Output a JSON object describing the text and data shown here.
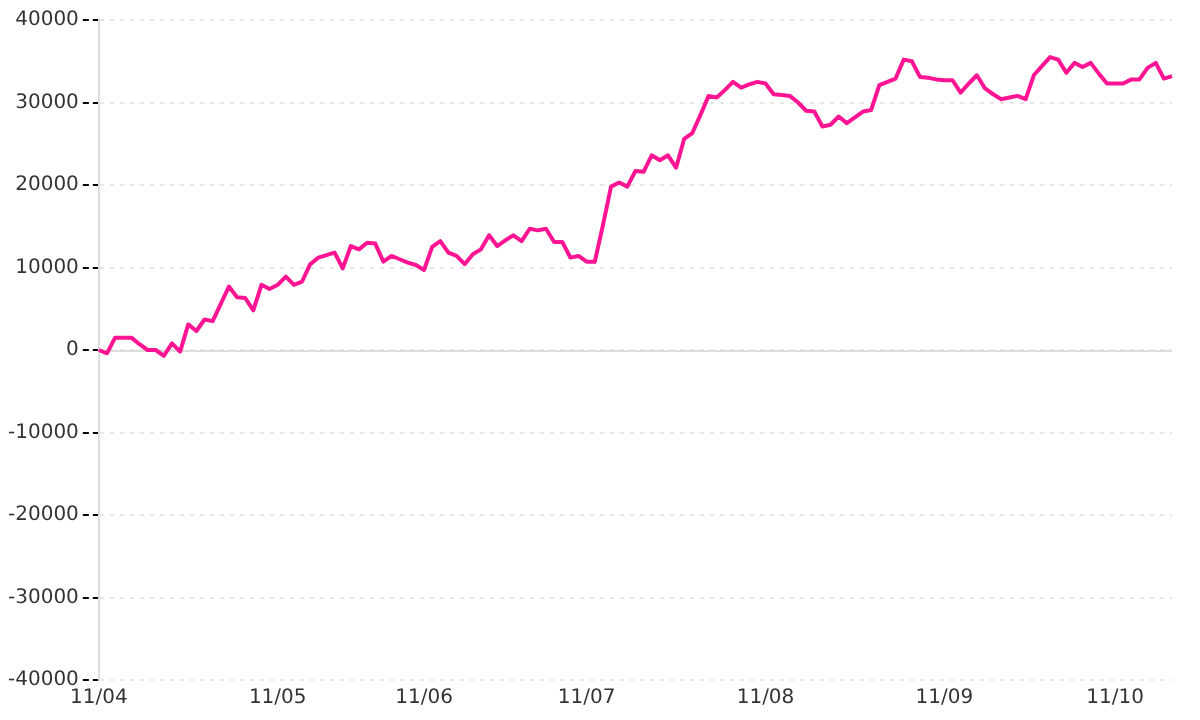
{
  "chart_data": {
    "type": "line",
    "ylim": [
      -40000,
      40000
    ],
    "categories": [
      "11/04",
      null,
      null,
      null,
      null,
      null,
      null,
      null,
      null,
      null,
      null,
      null,
      null,
      null,
      null,
      null,
      null,
      null,
      null,
      null,
      null,
      null,
      "11/05",
      null,
      null,
      null,
      null,
      null,
      null,
      null,
      null,
      null,
      null,
      null,
      null,
      null,
      null,
      null,
      null,
      null,
      "11/06",
      null,
      null,
      null,
      null,
      null,
      null,
      null,
      null,
      null,
      null,
      null,
      null,
      null,
      null,
      null,
      null,
      null,
      null,
      null,
      "11/07",
      null,
      null,
      null,
      null,
      null,
      null,
      null,
      null,
      null,
      null,
      null,
      null,
      null,
      null,
      null,
      null,
      null,
      null,
      null,
      null,
      null,
      "11/08",
      null,
      null,
      null,
      null,
      null,
      null,
      null,
      null,
      null,
      null,
      null,
      null,
      null,
      null,
      null,
      null,
      null,
      null,
      null,
      null,
      null,
      "11/09",
      null,
      null,
      null,
      null,
      null,
      null,
      null,
      null,
      null,
      null,
      null,
      null,
      null,
      null,
      null,
      null,
      null,
      null,
      null,
      null,
      "11/10",
      null,
      null,
      null,
      null,
      null,
      null,
      null
    ],
    "yticks": [
      -40000,
      -30000,
      -20000,
      -10000,
      0,
      10000,
      20000,
      30000,
      40000
    ],
    "grid": "y",
    "legend": false,
    "marker": "none",
    "line_style": "solid",
    "ref_lines": [
      {
        "axis": "y",
        "value": 0,
        "color": "#dddddd"
      }
    ],
    "series": [
      {
        "color": "#ff1493",
        "values": [
          0,
          -400,
          1500,
          1500,
          1500,
          700,
          0,
          0,
          -700,
          800,
          -200,
          3100,
          2300,
          3700,
          3500,
          5600,
          7700,
          6400,
          6300,
          4800,
          7900,
          7400,
          7900,
          8900,
          7900,
          8300,
          10400,
          11200,
          11500,
          11800,
          9900,
          12600,
          12200,
          13000,
          12900,
          10700,
          11400,
          11000,
          10600,
          10300,
          9700,
          12500,
          13200,
          11800,
          11400,
          10400,
          11600,
          12200,
          13900,
          12600,
          13300,
          13900,
          13200,
          14700,
          14500,
          14700,
          13100,
          13100,
          11200,
          11400,
          10700,
          10700,
          15100,
          19800,
          20300,
          19800,
          21700,
          21600,
          23600,
          23000,
          23600,
          22100,
          25600,
          26300,
          28500,
          30800,
          30600,
          31500,
          32500,
          31800,
          32200,
          32500,
          32300,
          31000,
          30900,
          30800,
          30000,
          29000,
          28900,
          27100,
          27300,
          28300,
          27500,
          28200,
          28900,
          29100,
          32100,
          32500,
          32900,
          35200,
          35000,
          33100,
          33000,
          32800,
          32700,
          32700,
          31200,
          32300,
          33300,
          31700,
          31000,
          30400,
          30600,
          30800,
          30400,
          33300,
          34400,
          35500,
          35200,
          33600,
          34800,
          34300,
          34800,
          33500,
          32300,
          32300,
          32300,
          32800,
          32800,
          34200,
          34800,
          32900,
          33200
        ]
      }
    ]
  }
}
